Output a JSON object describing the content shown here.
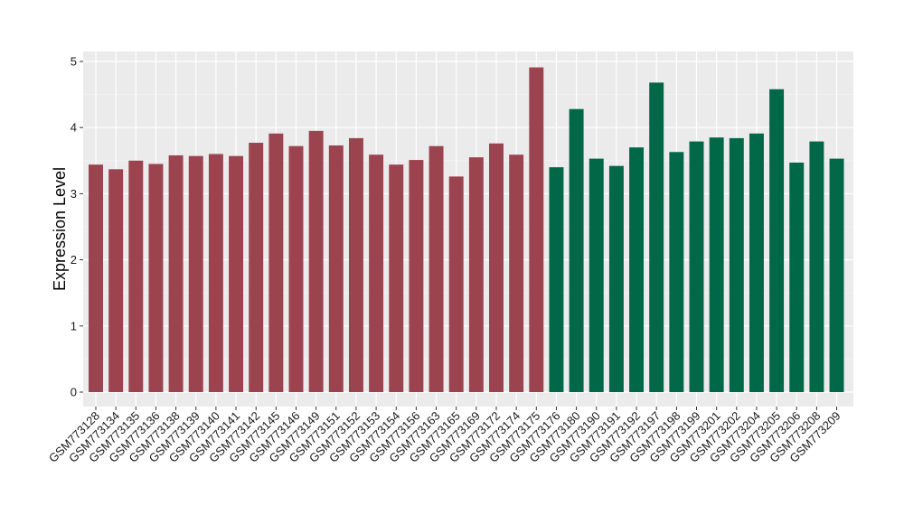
{
  "chart_data": {
    "type": "bar",
    "ylabel": "Expression Level",
    "xlabel": "",
    "ylim": [
      0,
      5
    ],
    "yticks": [
      0,
      1,
      2,
      3,
      4,
      5
    ],
    "grid": true,
    "legend": "none",
    "categories": [
      "GSM773128",
      "GSM773134",
      "GSM773135",
      "GSM773136",
      "GSM773138",
      "GSM773139",
      "GSM773140",
      "GSM773141",
      "GSM773142",
      "GSM773145",
      "GSM773146",
      "GSM773149",
      "GSM773151",
      "GSM773152",
      "GSM773153",
      "GSM773154",
      "GSM773156",
      "GSM773163",
      "GSM773165",
      "GSM773169",
      "GSM773172",
      "GSM773174",
      "GSM773175",
      "GSM773176",
      "GSM773180",
      "GSM773190",
      "GSM773191",
      "GSM773192",
      "GSM773197",
      "GSM773198",
      "GSM773199",
      "GSM773201",
      "GSM773202",
      "GSM773204",
      "GSM773205",
      "GSM773206",
      "GSM773208",
      "GSM773209"
    ],
    "values": [
      3.44,
      3.37,
      3.5,
      3.45,
      3.58,
      3.57,
      3.6,
      3.57,
      3.77,
      3.91,
      3.72,
      3.95,
      3.73,
      3.84,
      3.59,
      3.44,
      3.51,
      3.72,
      3.26,
      3.55,
      3.76,
      3.59,
      4.91,
      3.4,
      4.28,
      3.53,
      3.42,
      3.7,
      4.68,
      3.63,
      3.79,
      3.85,
      3.84,
      3.91,
      4.58,
      3.47,
      3.79,
      3.53
    ],
    "groups": [
      "a",
      "a",
      "a",
      "a",
      "a",
      "a",
      "a",
      "a",
      "a",
      "a",
      "a",
      "a",
      "a",
      "a",
      "a",
      "a",
      "a",
      "a",
      "a",
      "a",
      "a",
      "a",
      "a",
      "b",
      "b",
      "b",
      "b",
      "b",
      "b",
      "b",
      "b",
      "b",
      "b",
      "b",
      "b",
      "b",
      "b",
      "b"
    ],
    "colors": {
      "a": "#9c4350",
      "b": "#006747"
    }
  }
}
